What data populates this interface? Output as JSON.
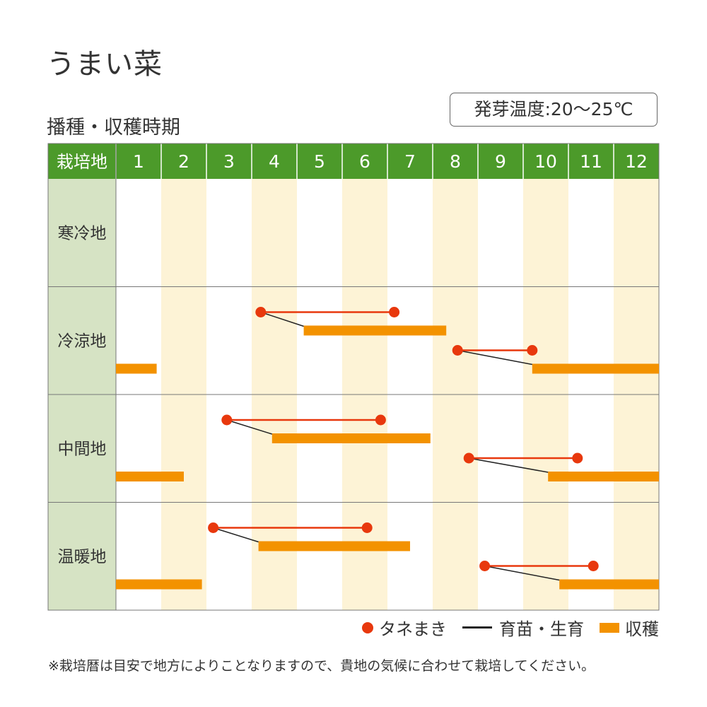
{
  "title": "うまい菜",
  "subtitle": "播種・収穫時期",
  "germination_temp": "発芽温度:20〜25℃",
  "legend": {
    "sowing": "タネまき",
    "seedling": "育苗・生育",
    "harvest": "収穫"
  },
  "note": "※栽培暦は目安で地方によりことなりますので、貴地の気候に合わせて栽培してください。",
  "colors": {
    "header_bg": "#4c9a2a",
    "region_bg": "#d6e3c4",
    "stripe": "#fdf3d6",
    "sowing": "#e8380d",
    "harvest": "#f39200",
    "seedling": "#222222"
  },
  "chart_data": {
    "type": "table",
    "header_label": "栽培地",
    "months": [
      "1",
      "2",
      "3",
      "4",
      "5",
      "6",
      "7",
      "8",
      "9",
      "10",
      "11",
      "12"
    ],
    "regions": [
      {
        "name": "寒冷地",
        "crops": [],
        "harvest_only": []
      },
      {
        "name": "冷涼地",
        "crops": [
          {
            "sow_start": 4.2,
            "sow_end": 7.15,
            "harvest_start": 5.15,
            "harvest_end": 8.3
          },
          {
            "sow_start": 8.55,
            "sow_end": 10.2,
            "harvest_start": 10.2,
            "harvest_end": 13.0
          }
        ],
        "harvest_only": [
          {
            "start": 1.0,
            "end": 1.9
          }
        ]
      },
      {
        "name": "中間地",
        "crops": [
          {
            "sow_start": 3.45,
            "sow_end": 6.85,
            "harvest_start": 4.45,
            "harvest_end": 7.95
          },
          {
            "sow_start": 8.8,
            "sow_end": 11.2,
            "harvest_start": 10.55,
            "harvest_end": 13.0
          }
        ],
        "harvest_only": [
          {
            "start": 1.0,
            "end": 2.5
          }
        ]
      },
      {
        "name": "温暖地",
        "crops": [
          {
            "sow_start": 3.15,
            "sow_end": 6.55,
            "harvest_start": 4.15,
            "harvest_end": 7.5
          },
          {
            "sow_start": 9.15,
            "sow_end": 11.55,
            "harvest_start": 10.8,
            "harvest_end": 13.0
          }
        ],
        "harvest_only": [
          {
            "start": 1.0,
            "end": 2.9
          }
        ]
      }
    ]
  }
}
